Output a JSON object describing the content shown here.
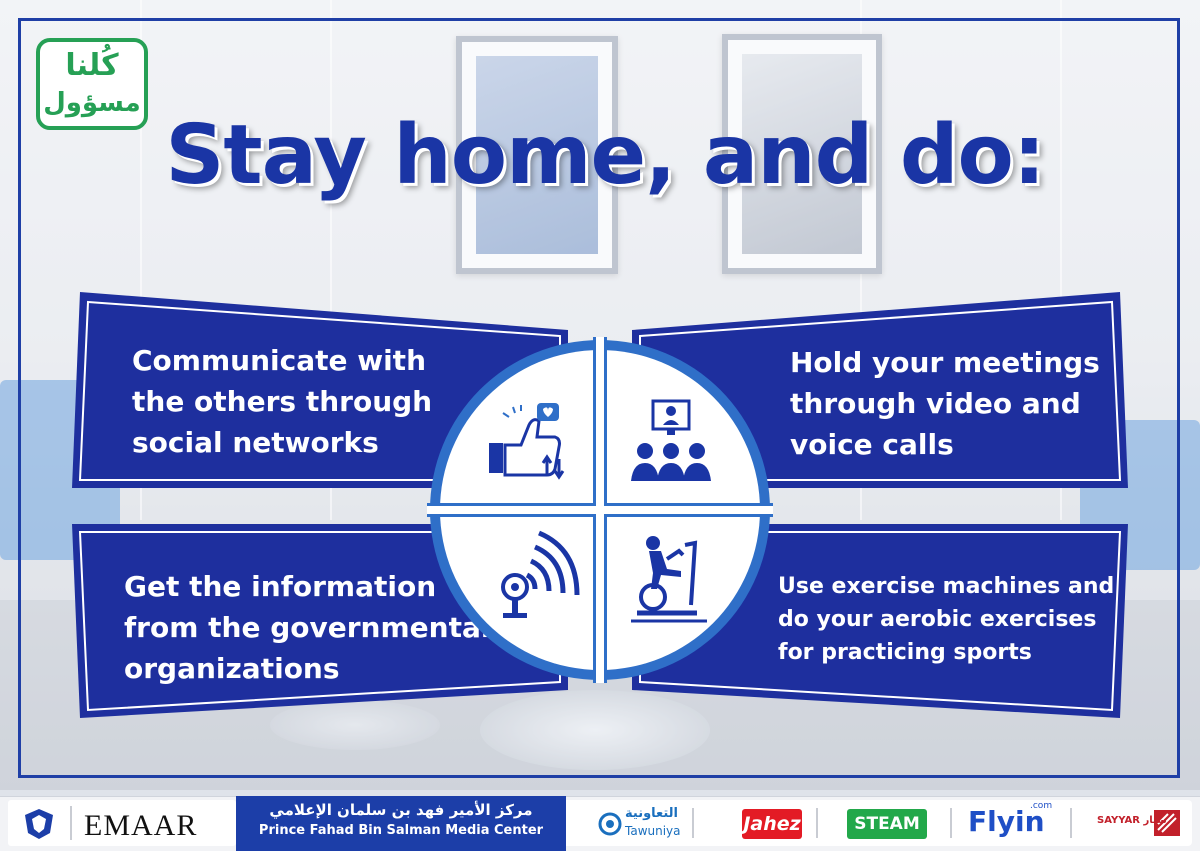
{
  "logo": {
    "line1": "كُلنا",
    "line2": "مسؤول"
  },
  "title": "Stay home, and do:",
  "cards": [
    {
      "id": "social",
      "lines": [
        "Communicate with",
        "the others through",
        "social networks"
      ],
      "icon": "thumbs-up-social-icon"
    },
    {
      "id": "meetings",
      "lines": [
        "Hold your meetings",
        "through video and",
        "voice calls"
      ],
      "icon": "video-conference-icon"
    },
    {
      "id": "info",
      "lines": [
        "Get the information",
        "from the governmental",
        "organizations"
      ],
      "icon": "broadcast-signal-icon"
    },
    {
      "id": "exercise",
      "lines": [
        "Use exercise machines and",
        "do your aerobic exercises",
        "for practicing sports"
      ],
      "icon": "exercise-bike-icon"
    }
  ],
  "sponsors": {
    "emaar": "EMAAR",
    "media_center_ar": "مركز الأمير فهد بن سلمان الإعلامي",
    "media_center_en": "Prince Fahad Bin Salman Media Center",
    "tawuniya_ar": "التعاونية",
    "tawuniya_en": "Tawuniya",
    "jahez": "Jahez",
    "steam": "STEAM",
    "flyin": "Flyin",
    "flyin_com": ".com",
    "sayyar": "SAYYAR سيار"
  },
  "colors": {
    "navy": "#1a35a5",
    "banner": "#1f2fa0",
    "green": "#26a055",
    "ring": "#2f6fc8"
  }
}
